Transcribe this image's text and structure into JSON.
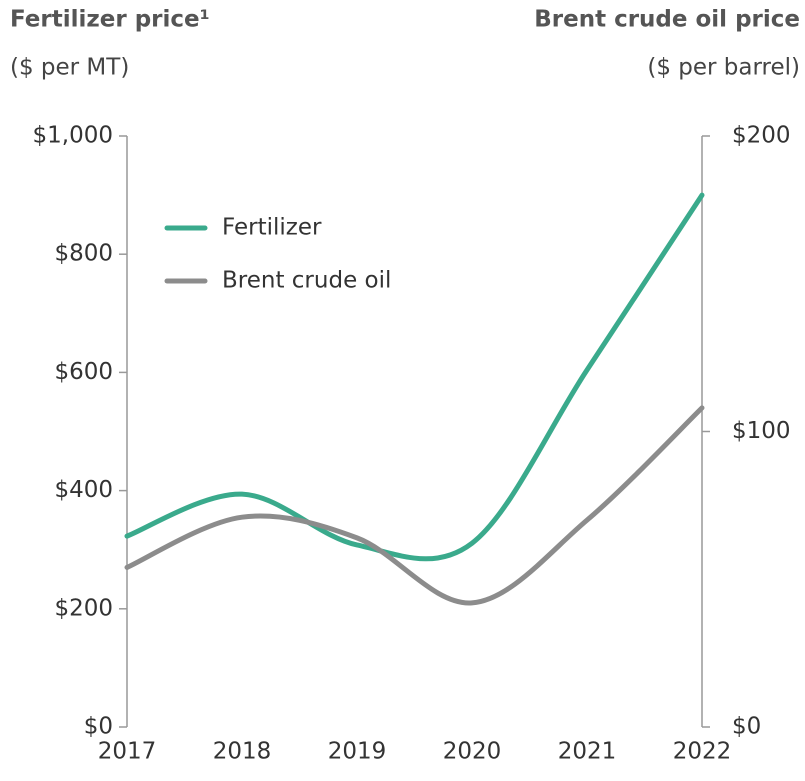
{
  "chart_data": {
    "type": "line",
    "title": "Fertilizer price¹",
    "subtitle": "($ per MT)",
    "y2_title": "Brent crude oil price",
    "y2_subtitle": "($ per barrel)",
    "x": [
      2017,
      2018,
      2019,
      2020,
      2021,
      2022
    ],
    "xlim": [
      2017,
      2022
    ],
    "xticks": [
      2017,
      2018,
      2019,
      2020,
      2021,
      2022
    ],
    "ylim": [
      0,
      1000
    ],
    "yticks": [
      {
        "value": 0,
        "label": "$0"
      },
      {
        "value": 200,
        "label": "$200"
      },
      {
        "value": 400,
        "label": "$400"
      },
      {
        "value": 600,
        "label": "$600"
      },
      {
        "value": 800,
        "label": "$800"
      },
      {
        "value": 1000,
        "label": "$1,000"
      }
    ],
    "y2lim": [
      0,
      200
    ],
    "y2ticks": [
      {
        "value": 0,
        "label": "$0"
      },
      {
        "value": 100,
        "label": "$100"
      },
      {
        "value": 200,
        "label": "$200"
      }
    ],
    "legend": "upper left",
    "series": [
      {
        "name": "Fertilizer",
        "color": "#3aaa8c",
        "values": [
          323,
          394,
          308,
          311,
          604,
          900
        ]
      },
      {
        "name": "Brent crude oil",
        "color": "#8c8c8c",
        "values": [
          54,
          71,
          64,
          42,
          70,
          108
        ],
        "axis": "y2"
      }
    ]
  }
}
